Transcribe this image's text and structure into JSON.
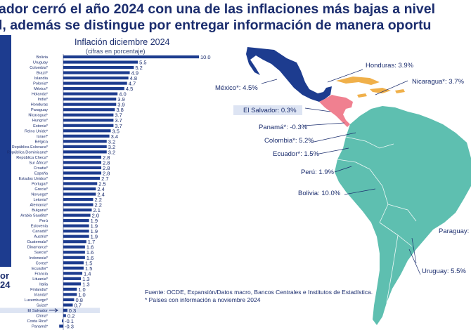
{
  "headline": {
    "line1": "ador cerró el año 2024 con una de las inflaciones más bajas a nivel",
    "line2": "l, además se distingue por entregar información de manera oportu"
  },
  "left_fragment": {
    "line1": "or",
    "line2": "24"
  },
  "chart_data": {
    "type": "bar",
    "orientation": "horizontal",
    "title": "Inflación diciembre 2024",
    "subtitle": "(cifras en porcentaje)",
    "categories": [
      "Bolivia",
      "Uruguay",
      "Colombia*",
      "Brazil*",
      "Islandia",
      "Polonia*",
      "México*",
      "Holanda*",
      "India*",
      "Honduras",
      "Paraguay",
      "Nicaragua*",
      "Hungría*",
      "Estonia*",
      "Reino Unido*",
      "Israel*",
      "Bélgica",
      "República Eslovaca*",
      "República Dominicana*",
      "República Checa*",
      "Sur África*",
      "Croatia*",
      "España",
      "Estados Unidos*",
      "Portugal*",
      "Grecia*",
      "Noruega*",
      "Letonia*",
      "Alemania*",
      "Bulgaria*",
      "Arabia Saudita*",
      "Perú",
      "Eslovenia",
      "Canadá*",
      "Austria*",
      "Guatemala*",
      "Dinamarca*",
      "Suecia*",
      "Indonesia*",
      "Corea*",
      "Ecuador*",
      "Francia",
      "Lituania*",
      "Italia",
      "Finlandia*",
      "Irlanda*",
      "Luxemburgo*",
      "Suiza*",
      "El Salvador",
      "China*",
      "Costa Rica*",
      "Panamá*"
    ],
    "values": [
      10.0,
      5.5,
      5.2,
      4.9,
      4.8,
      4.7,
      4.5,
      4.0,
      3.9,
      3.9,
      3.8,
      3.7,
      3.7,
      3.7,
      3.5,
      3.4,
      3.2,
      3.2,
      3.2,
      2.8,
      2.8,
      2.8,
      2.8,
      2.7,
      2.5,
      2.4,
      2.4,
      2.2,
      2.2,
      2.1,
      2.0,
      1.9,
      1.9,
      1.9,
      1.9,
      1.7,
      1.6,
      1.6,
      1.6,
      1.5,
      1.5,
      1.4,
      1.3,
      1.3,
      1.0,
      1.0,
      0.8,
      0.7,
      0.3,
      0.2,
      -0.1,
      -0.3
    ],
    "value_labels": [
      "10.0",
      "5.5",
      "5.2",
      "4.9",
      "4.8",
      "4.7",
      "4.5",
      "4.0",
      "3.9",
      "3.9",
      "3.8",
      "3.7",
      "3.7",
      "3.7",
      "3.5",
      "3.4",
      "3.2",
      "3.2",
      "3.2",
      "2.8",
      "2.8",
      "2.8",
      "2.8",
      "2.7",
      "2.5",
      "2.4",
      "2.4",
      "2.2",
      "2.2",
      "2.1",
      "2.0",
      "1.9",
      "1.9",
      "1.9",
      "1.9",
      "1.7",
      "1.6",
      "1.6",
      "1.6",
      "1.5",
      "1.5",
      "1.4",
      "1.3",
      "1.3",
      "1.0",
      "1.0",
      "0.8",
      "0.7",
      "0.3",
      "0.2",
      "-0.1",
      "-0.3"
    ],
    "highlight": "El Salvador",
    "bar_color": "#1d3c8f",
    "highlight_bg": "#dde4f3",
    "grid": false,
    "xlim": [
      -0.3,
      10.0
    ]
  },
  "map": {
    "labels": [
      {
        "key": "honduras",
        "text": "Honduras: 3.9%"
      },
      {
        "key": "nicaragua",
        "text": "Nicaragua*: 3.7%"
      },
      {
        "key": "mexico",
        "text": "México*: 4.5%"
      },
      {
        "key": "elsalvador",
        "text": "El Salvador: 0.3%"
      },
      {
        "key": "panama",
        "text": "Panamá*: -0.3%"
      },
      {
        "key": "colombia",
        "text": "Colombia*: 5.2%"
      },
      {
        "key": "ecuador",
        "text": "Ecuador*: 1.5%"
      },
      {
        "key": "peru",
        "text": "Perú: 1.9%"
      },
      {
        "key": "bolivia",
        "text": "Bolivia: 10.0%"
      },
      {
        "key": "paraguay",
        "text": "Paraguay:"
      },
      {
        "key": "uruguay",
        "text": "Uruguay: 5.5%"
      }
    ],
    "colors": {
      "mexico": "#1d3c8f",
      "central_america": "#f08090",
      "caribbean": "#f0b04a",
      "south_america": "#5ebfb0"
    }
  },
  "source": {
    "line1": "Fuente: OCDE, Expansión/Datos macro, Bancos Centrales e Institutos de Estadística.",
    "line2": "* Países con información a noviembre 2024"
  }
}
